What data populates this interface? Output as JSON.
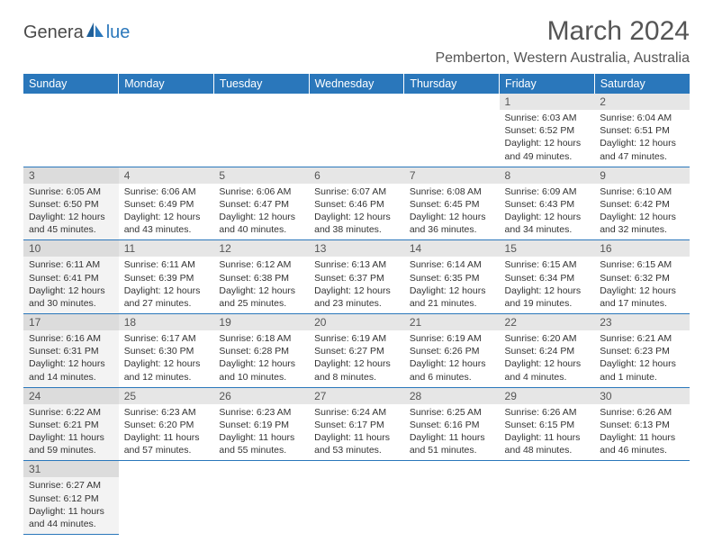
{
  "logo": {
    "text1": "Genera",
    "text2": "lue"
  },
  "title": "March 2024",
  "location": "Pemberton, Western Australia, Australia",
  "colors": {
    "header_bg": "#2a77bb",
    "header_fg": "#ffffff",
    "daynum_bg": "#e6e6e6",
    "daynum_bg_sun": "#dcdcdc",
    "cell_bg_sun": "#f3f3f3",
    "row_border": "#2a77bb",
    "text": "#333333"
  },
  "weekdays": [
    "Sunday",
    "Monday",
    "Tuesday",
    "Wednesday",
    "Thursday",
    "Friday",
    "Saturday"
  ],
  "weeks": [
    [
      null,
      null,
      null,
      null,
      null,
      {
        "n": "1",
        "sunrise": "Sunrise: 6:03 AM",
        "sunset": "Sunset: 6:52 PM",
        "daylight": "Daylight: 12 hours and 49 minutes."
      },
      {
        "n": "2",
        "sunrise": "Sunrise: 6:04 AM",
        "sunset": "Sunset: 6:51 PM",
        "daylight": "Daylight: 12 hours and 47 minutes."
      }
    ],
    [
      {
        "n": "3",
        "sunrise": "Sunrise: 6:05 AM",
        "sunset": "Sunset: 6:50 PM",
        "daylight": "Daylight: 12 hours and 45 minutes."
      },
      {
        "n": "4",
        "sunrise": "Sunrise: 6:06 AM",
        "sunset": "Sunset: 6:49 PM",
        "daylight": "Daylight: 12 hours and 43 minutes."
      },
      {
        "n": "5",
        "sunrise": "Sunrise: 6:06 AM",
        "sunset": "Sunset: 6:47 PM",
        "daylight": "Daylight: 12 hours and 40 minutes."
      },
      {
        "n": "6",
        "sunrise": "Sunrise: 6:07 AM",
        "sunset": "Sunset: 6:46 PM",
        "daylight": "Daylight: 12 hours and 38 minutes."
      },
      {
        "n": "7",
        "sunrise": "Sunrise: 6:08 AM",
        "sunset": "Sunset: 6:45 PM",
        "daylight": "Daylight: 12 hours and 36 minutes."
      },
      {
        "n": "8",
        "sunrise": "Sunrise: 6:09 AM",
        "sunset": "Sunset: 6:43 PM",
        "daylight": "Daylight: 12 hours and 34 minutes."
      },
      {
        "n": "9",
        "sunrise": "Sunrise: 6:10 AM",
        "sunset": "Sunset: 6:42 PM",
        "daylight": "Daylight: 12 hours and 32 minutes."
      }
    ],
    [
      {
        "n": "10",
        "sunrise": "Sunrise: 6:11 AM",
        "sunset": "Sunset: 6:41 PM",
        "daylight": "Daylight: 12 hours and 30 minutes."
      },
      {
        "n": "11",
        "sunrise": "Sunrise: 6:11 AM",
        "sunset": "Sunset: 6:39 PM",
        "daylight": "Daylight: 12 hours and 27 minutes."
      },
      {
        "n": "12",
        "sunrise": "Sunrise: 6:12 AM",
        "sunset": "Sunset: 6:38 PM",
        "daylight": "Daylight: 12 hours and 25 minutes."
      },
      {
        "n": "13",
        "sunrise": "Sunrise: 6:13 AM",
        "sunset": "Sunset: 6:37 PM",
        "daylight": "Daylight: 12 hours and 23 minutes."
      },
      {
        "n": "14",
        "sunrise": "Sunrise: 6:14 AM",
        "sunset": "Sunset: 6:35 PM",
        "daylight": "Daylight: 12 hours and 21 minutes."
      },
      {
        "n": "15",
        "sunrise": "Sunrise: 6:15 AM",
        "sunset": "Sunset: 6:34 PM",
        "daylight": "Daylight: 12 hours and 19 minutes."
      },
      {
        "n": "16",
        "sunrise": "Sunrise: 6:15 AM",
        "sunset": "Sunset: 6:32 PM",
        "daylight": "Daylight: 12 hours and 17 minutes."
      }
    ],
    [
      {
        "n": "17",
        "sunrise": "Sunrise: 6:16 AM",
        "sunset": "Sunset: 6:31 PM",
        "daylight": "Daylight: 12 hours and 14 minutes."
      },
      {
        "n": "18",
        "sunrise": "Sunrise: 6:17 AM",
        "sunset": "Sunset: 6:30 PM",
        "daylight": "Daylight: 12 hours and 12 minutes."
      },
      {
        "n": "19",
        "sunrise": "Sunrise: 6:18 AM",
        "sunset": "Sunset: 6:28 PM",
        "daylight": "Daylight: 12 hours and 10 minutes."
      },
      {
        "n": "20",
        "sunrise": "Sunrise: 6:19 AM",
        "sunset": "Sunset: 6:27 PM",
        "daylight": "Daylight: 12 hours and 8 minutes."
      },
      {
        "n": "21",
        "sunrise": "Sunrise: 6:19 AM",
        "sunset": "Sunset: 6:26 PM",
        "daylight": "Daylight: 12 hours and 6 minutes."
      },
      {
        "n": "22",
        "sunrise": "Sunrise: 6:20 AM",
        "sunset": "Sunset: 6:24 PM",
        "daylight": "Daylight: 12 hours and 4 minutes."
      },
      {
        "n": "23",
        "sunrise": "Sunrise: 6:21 AM",
        "sunset": "Sunset: 6:23 PM",
        "daylight": "Daylight: 12 hours and 1 minute."
      }
    ],
    [
      {
        "n": "24",
        "sunrise": "Sunrise: 6:22 AM",
        "sunset": "Sunset: 6:21 PM",
        "daylight": "Daylight: 11 hours and 59 minutes."
      },
      {
        "n": "25",
        "sunrise": "Sunrise: 6:23 AM",
        "sunset": "Sunset: 6:20 PM",
        "daylight": "Daylight: 11 hours and 57 minutes."
      },
      {
        "n": "26",
        "sunrise": "Sunrise: 6:23 AM",
        "sunset": "Sunset: 6:19 PM",
        "daylight": "Daylight: 11 hours and 55 minutes."
      },
      {
        "n": "27",
        "sunrise": "Sunrise: 6:24 AM",
        "sunset": "Sunset: 6:17 PM",
        "daylight": "Daylight: 11 hours and 53 minutes."
      },
      {
        "n": "28",
        "sunrise": "Sunrise: 6:25 AM",
        "sunset": "Sunset: 6:16 PM",
        "daylight": "Daylight: 11 hours and 51 minutes."
      },
      {
        "n": "29",
        "sunrise": "Sunrise: 6:26 AM",
        "sunset": "Sunset: 6:15 PM",
        "daylight": "Daylight: 11 hours and 48 minutes."
      },
      {
        "n": "30",
        "sunrise": "Sunrise: 6:26 AM",
        "sunset": "Sunset: 6:13 PM",
        "daylight": "Daylight: 11 hours and 46 minutes."
      }
    ],
    [
      {
        "n": "31",
        "sunrise": "Sunrise: 6:27 AM",
        "sunset": "Sunset: 6:12 PM",
        "daylight": "Daylight: 11 hours and 44 minutes."
      },
      null,
      null,
      null,
      null,
      null,
      null
    ]
  ]
}
